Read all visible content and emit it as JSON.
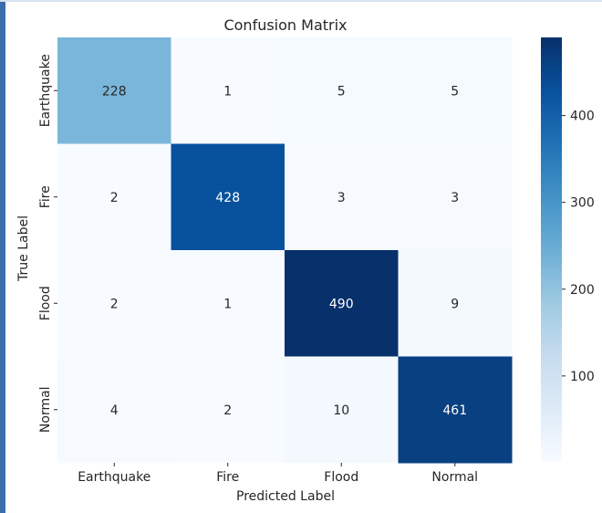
{
  "chart_data": {
    "type": "heatmap",
    "title": "Confusion Matrix",
    "xlabel": "Predicted Label",
    "ylabel": "True Label",
    "x_categories": [
      "Earthquake",
      "Fire",
      "Flood",
      "Normal"
    ],
    "y_categories": [
      "Earthquake",
      "Fire",
      "Flood",
      "Normal"
    ],
    "values": [
      [
        228,
        1,
        5,
        5
      ],
      [
        2,
        428,
        3,
        3
      ],
      [
        2,
        1,
        490,
        9
      ],
      [
        4,
        2,
        10,
        461
      ]
    ],
    "colormap": "Blues",
    "colorbar": {
      "min": 1,
      "max": 490,
      "ticks": [
        100,
        200,
        300,
        400
      ]
    },
    "colors": {
      "low": "#f7fbff",
      "high": "#08306b"
    }
  }
}
